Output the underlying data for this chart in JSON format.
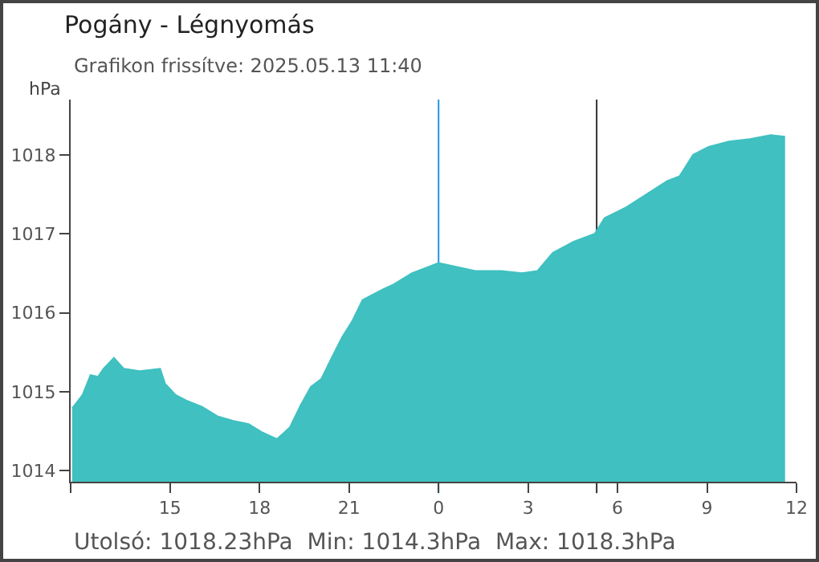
{
  "chart_data": {
    "type": "area",
    "title": "Pogány - Légnyomás",
    "subtitle": "Grafikon frissítve: 2025.05.13 11:40",
    "ylabel": "hPa",
    "annotations": [
      "Utolsó: 1018.23hPa  Min: 1014.3hPa  Max: 1018.3hPa"
    ],
    "x": [
      "2025-05-12T11:43",
      "2025-05-12T12:04",
      "2025-05-12T12:20",
      "2025-05-12T12:35",
      "2025-05-12T12:46",
      "2025-05-12T13:07",
      "2025-05-12T13:27",
      "2025-05-12T13:59",
      "2025-05-12T14:40",
      "2025-05-12T14:50",
      "2025-05-12T15:11",
      "2025-05-12T15:32",
      "2025-05-12T16:04",
      "2025-05-12T16:35",
      "2025-05-12T17:07",
      "2025-05-12T17:38",
      "2025-05-12T18:04",
      "2025-05-12T18:35",
      "2025-05-12T19:01",
      "2025-05-12T19:22",
      "2025-05-12T19:43",
      "2025-05-12T20:04",
      "2025-05-12T20:25",
      "2025-05-12T20:46",
      "2025-05-12T21:06",
      "2025-05-12T21:27",
      "2025-05-12T21:48",
      "2025-05-12T22:09",
      "2025-05-12T22:30",
      "2025-05-12T23:06",
      "2025-05-13T00:00",
      "2025-05-13T01:14",
      "2025-05-13T02:06",
      "2025-05-13T02:48",
      "2025-05-13T03:19",
      "2025-05-13T03:50",
      "2025-05-13T04:32",
      "2025-05-13T05:14",
      "2025-05-13T05:34",
      "2025-05-13T06:16",
      "2025-05-13T06:58",
      "2025-05-13T07:40",
      "2025-05-13T08:05",
      "2025-05-13T08:32",
      "2025-05-13T09:03",
      "2025-05-13T09:44",
      "2025-05-13T10:26",
      "2025-05-13T11:08",
      "2025-05-13T11:37"
    ],
    "series": [
      {
        "color": "#40c0c0",
        "values": [
          1014.79,
          1014.96,
          1015.21,
          1015.19,
          1015.29,
          1015.43,
          1015.29,
          1015.26,
          1015.29,
          1015.1,
          1014.96,
          1014.89,
          1014.81,
          1014.69,
          1014.63,
          1014.59,
          1014.49,
          1014.4,
          1014.55,
          1014.82,
          1015.06,
          1015.16,
          1015.43,
          1015.69,
          1015.89,
          1016.16,
          1016.23,
          1016.3,
          1016.36,
          1016.5,
          1016.63,
          1016.53,
          1016.53,
          1016.5,
          1016.53,
          1016.76,
          1016.9,
          1017.0,
          1017.2,
          1017.33,
          1017.5,
          1017.67,
          1017.73,
          1018.0,
          1018.1,
          1018.17,
          1018.2,
          1018.25,
          1018.23
        ]
      }
    ],
    "xlim": [
      "2025-05-12T11:40",
      "2025-05-13T12:00"
    ],
    "xticks": [
      {
        "value": "2025-05-12T11:40",
        "label": null
      },
      {
        "value": "2025-05-12T15:00",
        "label": "15"
      },
      {
        "value": "2025-05-12T18:00",
        "label": "18"
      },
      {
        "value": "2025-05-12T21:00",
        "label": "21"
      },
      {
        "value": "2025-05-13T00:00",
        "label": "0"
      },
      {
        "value": "2025-05-13T03:00",
        "label": "3"
      },
      {
        "value": "2025-05-13T06:00",
        "label": "6"
      },
      {
        "value": "2025-05-13T09:00",
        "label": "9"
      },
      {
        "value": "2025-05-13T12:00",
        "label": "12"
      }
    ],
    "ylim": [
      1013.86,
      1018.7
    ],
    "yticks": [
      1014,
      1015,
      1016,
      1017,
      1018
    ],
    "ref_lines": [
      {
        "axis": "x",
        "value": "2025-05-13T00:00",
        "color": "#2196e0"
      },
      {
        "axis": "x",
        "value": "2025-05-13T05:18",
        "color": "#333333"
      }
    ],
    "grid": false
  }
}
